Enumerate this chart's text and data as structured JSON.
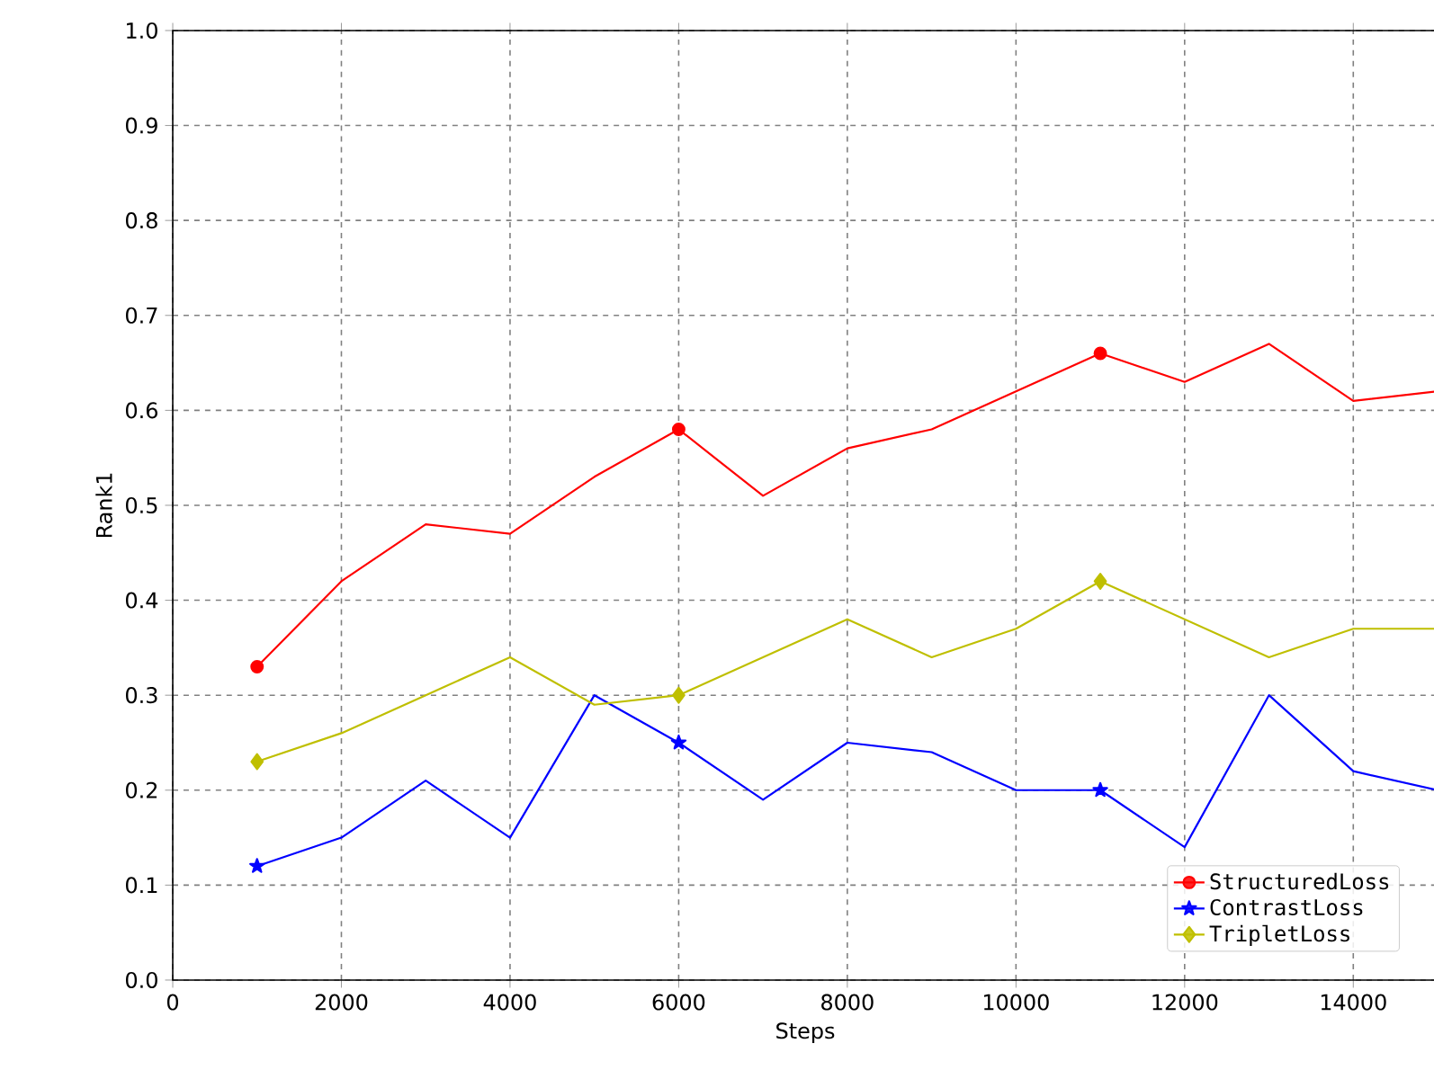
{
  "chart_data": {
    "type": "line",
    "xlabel": "Steps",
    "ylabel": "Rank1",
    "x": [
      1000,
      2000,
      3000,
      4000,
      5000,
      6000,
      7000,
      8000,
      9000,
      10000,
      11000,
      12000,
      13000,
      14000,
      15000
    ],
    "series": [
      {
        "name": "StructuredLoss",
        "color": "#ff0000",
        "values": [
          0.33,
          0.42,
          0.48,
          0.47,
          0.53,
          0.58,
          0.51,
          0.56,
          0.58,
          0.62,
          0.66,
          0.63,
          0.67,
          0.61,
          0.62
        ]
      },
      {
        "name": "ContrastLoss",
        "color": "#0000ff",
        "values": [
          0.12,
          0.15,
          0.21,
          0.15,
          0.3,
          0.25,
          0.19,
          0.25,
          0.24,
          0.2,
          0.2,
          0.14,
          0.3,
          0.22,
          0.2
        ]
      },
      {
        "name": "TripletLoss",
        "color": "#bfbf00",
        "values": [
          0.23,
          0.26,
          0.3,
          0.34,
          0.29,
          0.3,
          0.34,
          0.38,
          0.34,
          0.37,
          0.42,
          0.38,
          0.34,
          0.37,
          0.37
        ]
      },
      {
        "type": "scatter",
        "color": "#ff0000",
        "marker": "circle",
        "x": [
          1000,
          6000,
          11000
        ],
        "values": [
          0.33,
          0.58,
          0.66
        ]
      },
      {
        "type": "scatter",
        "color": "#0000ff",
        "marker": "star",
        "x": [
          1000,
          6000,
          11000
        ],
        "values": [
          0.12,
          0.25,
          0.2
        ]
      },
      {
        "type": "scatter",
        "color": "#bfbf00",
        "marker": "diamond",
        "x": [
          1000,
          6000,
          11000
        ],
        "values": [
          0.23,
          0.3,
          0.42
        ]
      }
    ],
    "xlim": [
      0,
      15000
    ],
    "ylim": [
      0,
      1
    ],
    "xticks": [
      0,
      2000,
      4000,
      6000,
      8000,
      10000,
      12000,
      14000
    ],
    "yticks": [
      {
        "value": 0,
        "label": "0.0"
      },
      0.1,
      0.2,
      0.3,
      0.4,
      0.5,
      0.6,
      0.7,
      0.8,
      0.9,
      {
        "value": 1,
        "label": "1.0"
      }
    ],
    "grid": true,
    "legend": "bottom right",
    "line_style": "solid"
  }
}
